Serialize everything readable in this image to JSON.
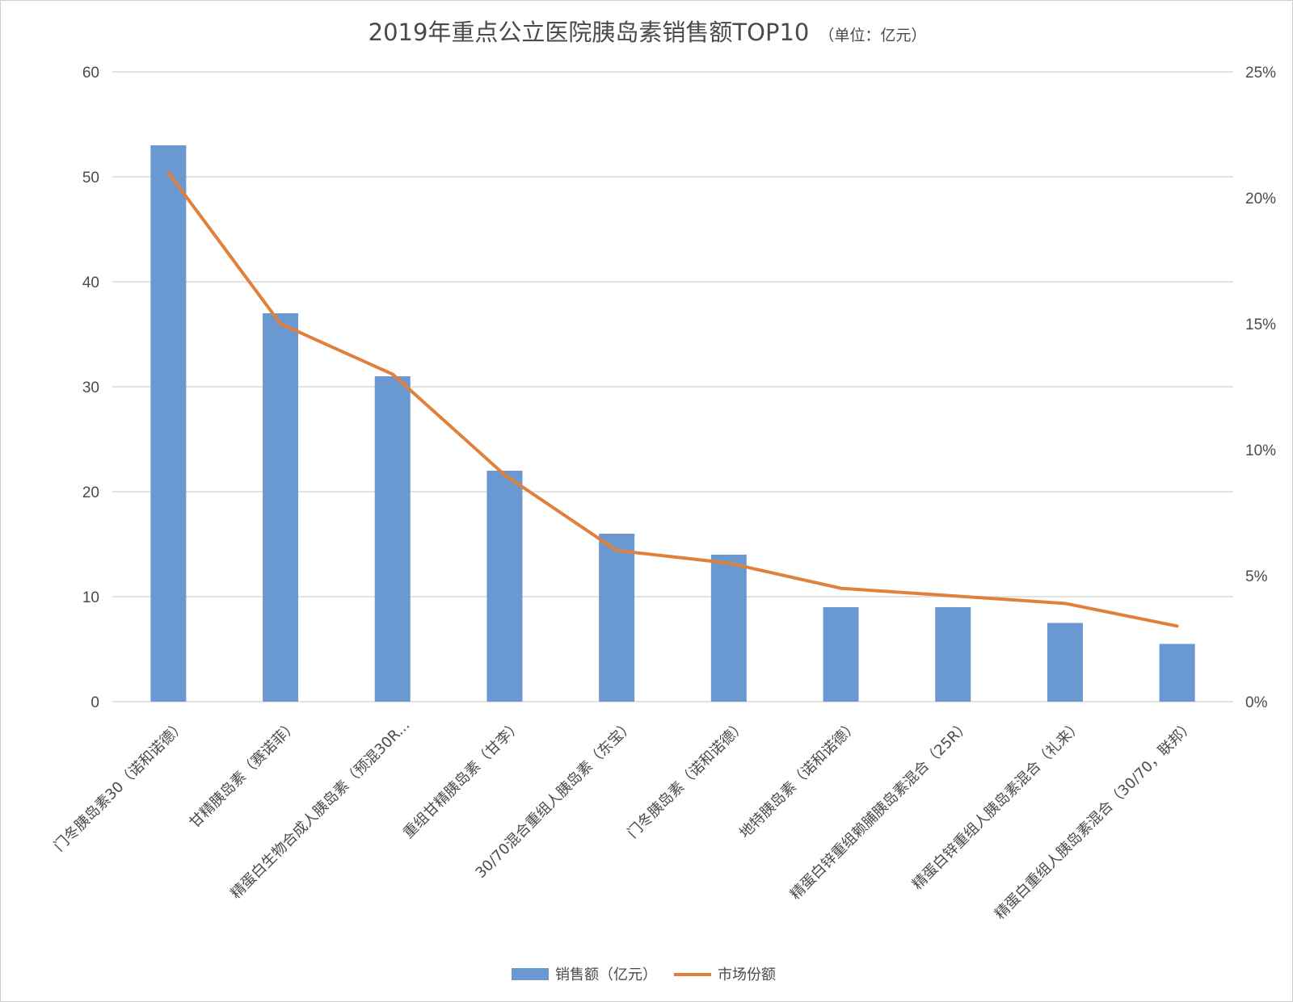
{
  "chart_data": {
    "type": "bar",
    "title": "2019年重点公立医院胰岛素销售额TOP10",
    "subtitle": "（单位：亿元）",
    "categories": [
      "门冬胰岛素30（诺和诺德）",
      "甘精胰岛素（赛诺菲）",
      "精蛋白生物合成人胰岛素（预混30R...",
      "重组甘精胰岛素（甘李）",
      "30/70混合重组人胰岛素（东宝）",
      "门冬胰岛素（诺和诺德）",
      "地特胰岛素（诺和诺德）",
      "精蛋白锌重组赖脯胰岛素混合（25R）",
      "精蛋白锌重组人胰岛素混合（礼来）",
      "精蛋白重组人胰岛素混合（30/70，联邦）"
    ],
    "series": [
      {
        "name": "销售额（亿元）",
        "type": "bar",
        "axis": "left",
        "color": "#6a98d0",
        "values": [
          53,
          37,
          31,
          22,
          16,
          14,
          9,
          9,
          7.5,
          5.5
        ]
      },
      {
        "name": "市场份额",
        "type": "line",
        "axis": "right",
        "color": "#e0803a",
        "values": [
          0.21,
          0.15,
          0.13,
          0.09,
          0.06,
          0.055,
          0.045,
          0.042,
          0.039,
          0.03
        ]
      }
    ],
    "y_left": {
      "ylim": [
        0,
        60
      ],
      "ticks": [
        0,
        10,
        20,
        30,
        40,
        50,
        60
      ],
      "tick_labels": [
        "0",
        "10",
        "20",
        "30",
        "40",
        "50",
        "60"
      ]
    },
    "y_right": {
      "ylim": [
        0,
        0.25
      ],
      "ticks": [
        0,
        0.05,
        0.1,
        0.15,
        0.2,
        0.25
      ],
      "tick_labels": [
        "0%",
        "5%",
        "10%",
        "15%",
        "20%",
        "25%"
      ]
    },
    "grid": true,
    "legend": "bottom",
    "xlabel": "",
    "ylabel": ""
  }
}
